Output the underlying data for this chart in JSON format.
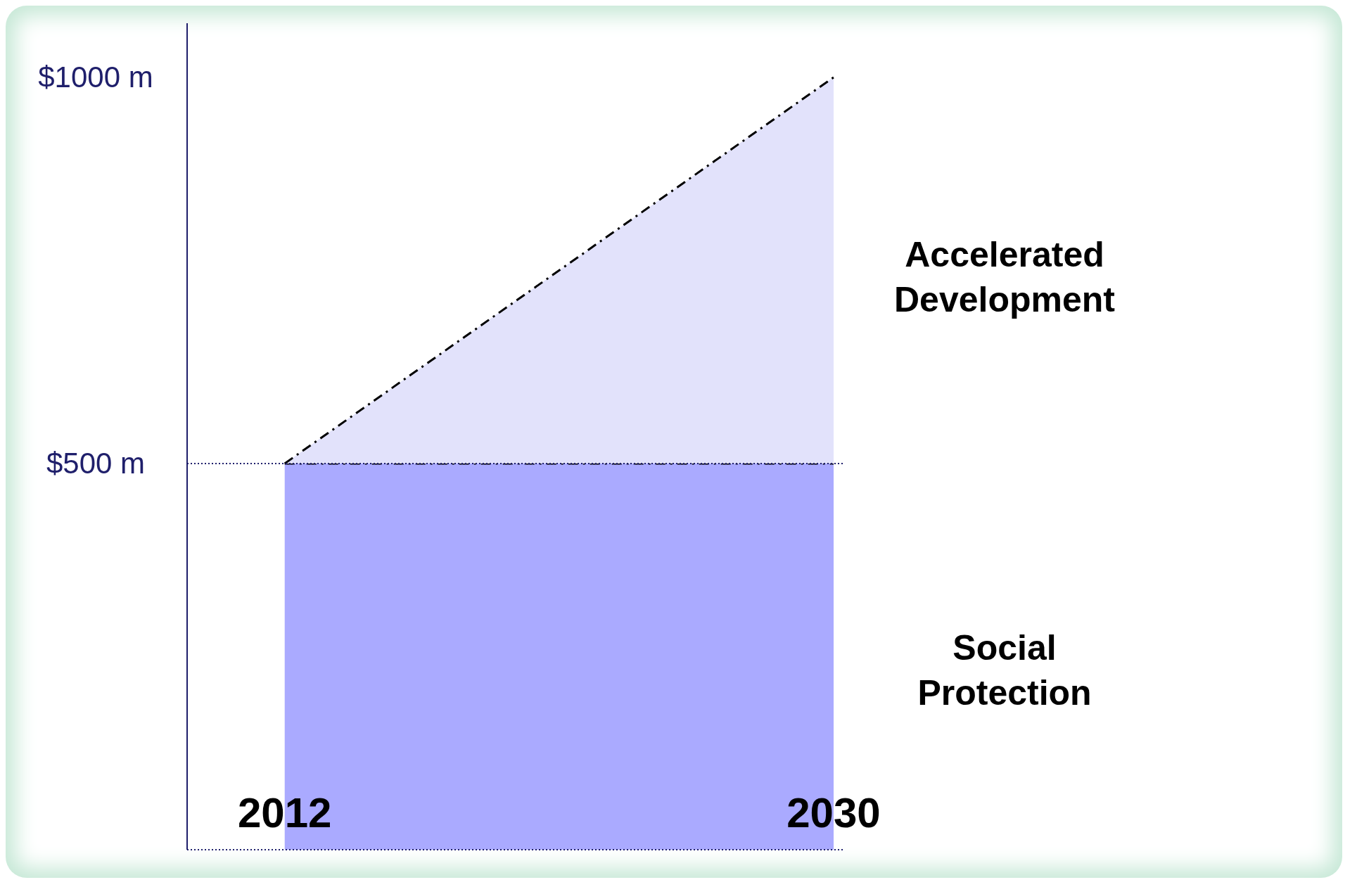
{
  "chart_data": {
    "type": "area",
    "stacked": true,
    "x": [
      2012,
      2030
    ],
    "xlim": [
      2008.8,
      2030.3
    ],
    "xticks": [
      2012,
      2030
    ],
    "ylim": [
      0,
      1070
    ],
    "yticks": [
      {
        "value": 500,
        "label": "$500 m"
      },
      {
        "value": 1000,
        "label": "$1000 m"
      }
    ],
    "series": [
      {
        "name": "Social Protection",
        "color": "#aaaaff",
        "values": [
          500,
          500
        ]
      },
      {
        "name": "Accelerated Development",
        "color": "#e2e2fb",
        "values": [
          0,
          500
        ]
      }
    ],
    "ref_lines": [
      {
        "axis": "y",
        "value": 500,
        "color": "#1f1f6b",
        "line_style": "dotted"
      }
    ],
    "line_style": "dashed"
  }
}
